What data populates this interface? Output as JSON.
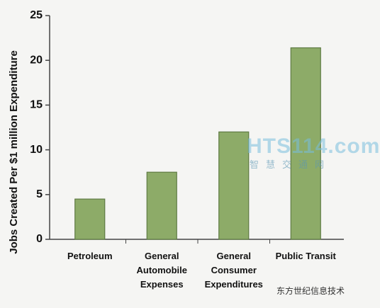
{
  "chart_data": {
    "type": "bar",
    "y_label": "Jobs Created Per $1 million Expenditure",
    "categories": [
      "Petroleum",
      "General Automobile Expenses",
      "General Consumer Expenditures",
      "Public Transit"
    ],
    "values": [
      4.5,
      7.5,
      12,
      21.4
    ],
    "color": "#8dab68",
    "ylim": [
      0,
      25
    ],
    "yticks": [
      0,
      5,
      10,
      15,
      20,
      25
    ],
    "grid": false
  },
  "watermarks": [
    "HTS114.com",
    "智慧交通网",
    "东方世纪信息技术"
  ]
}
